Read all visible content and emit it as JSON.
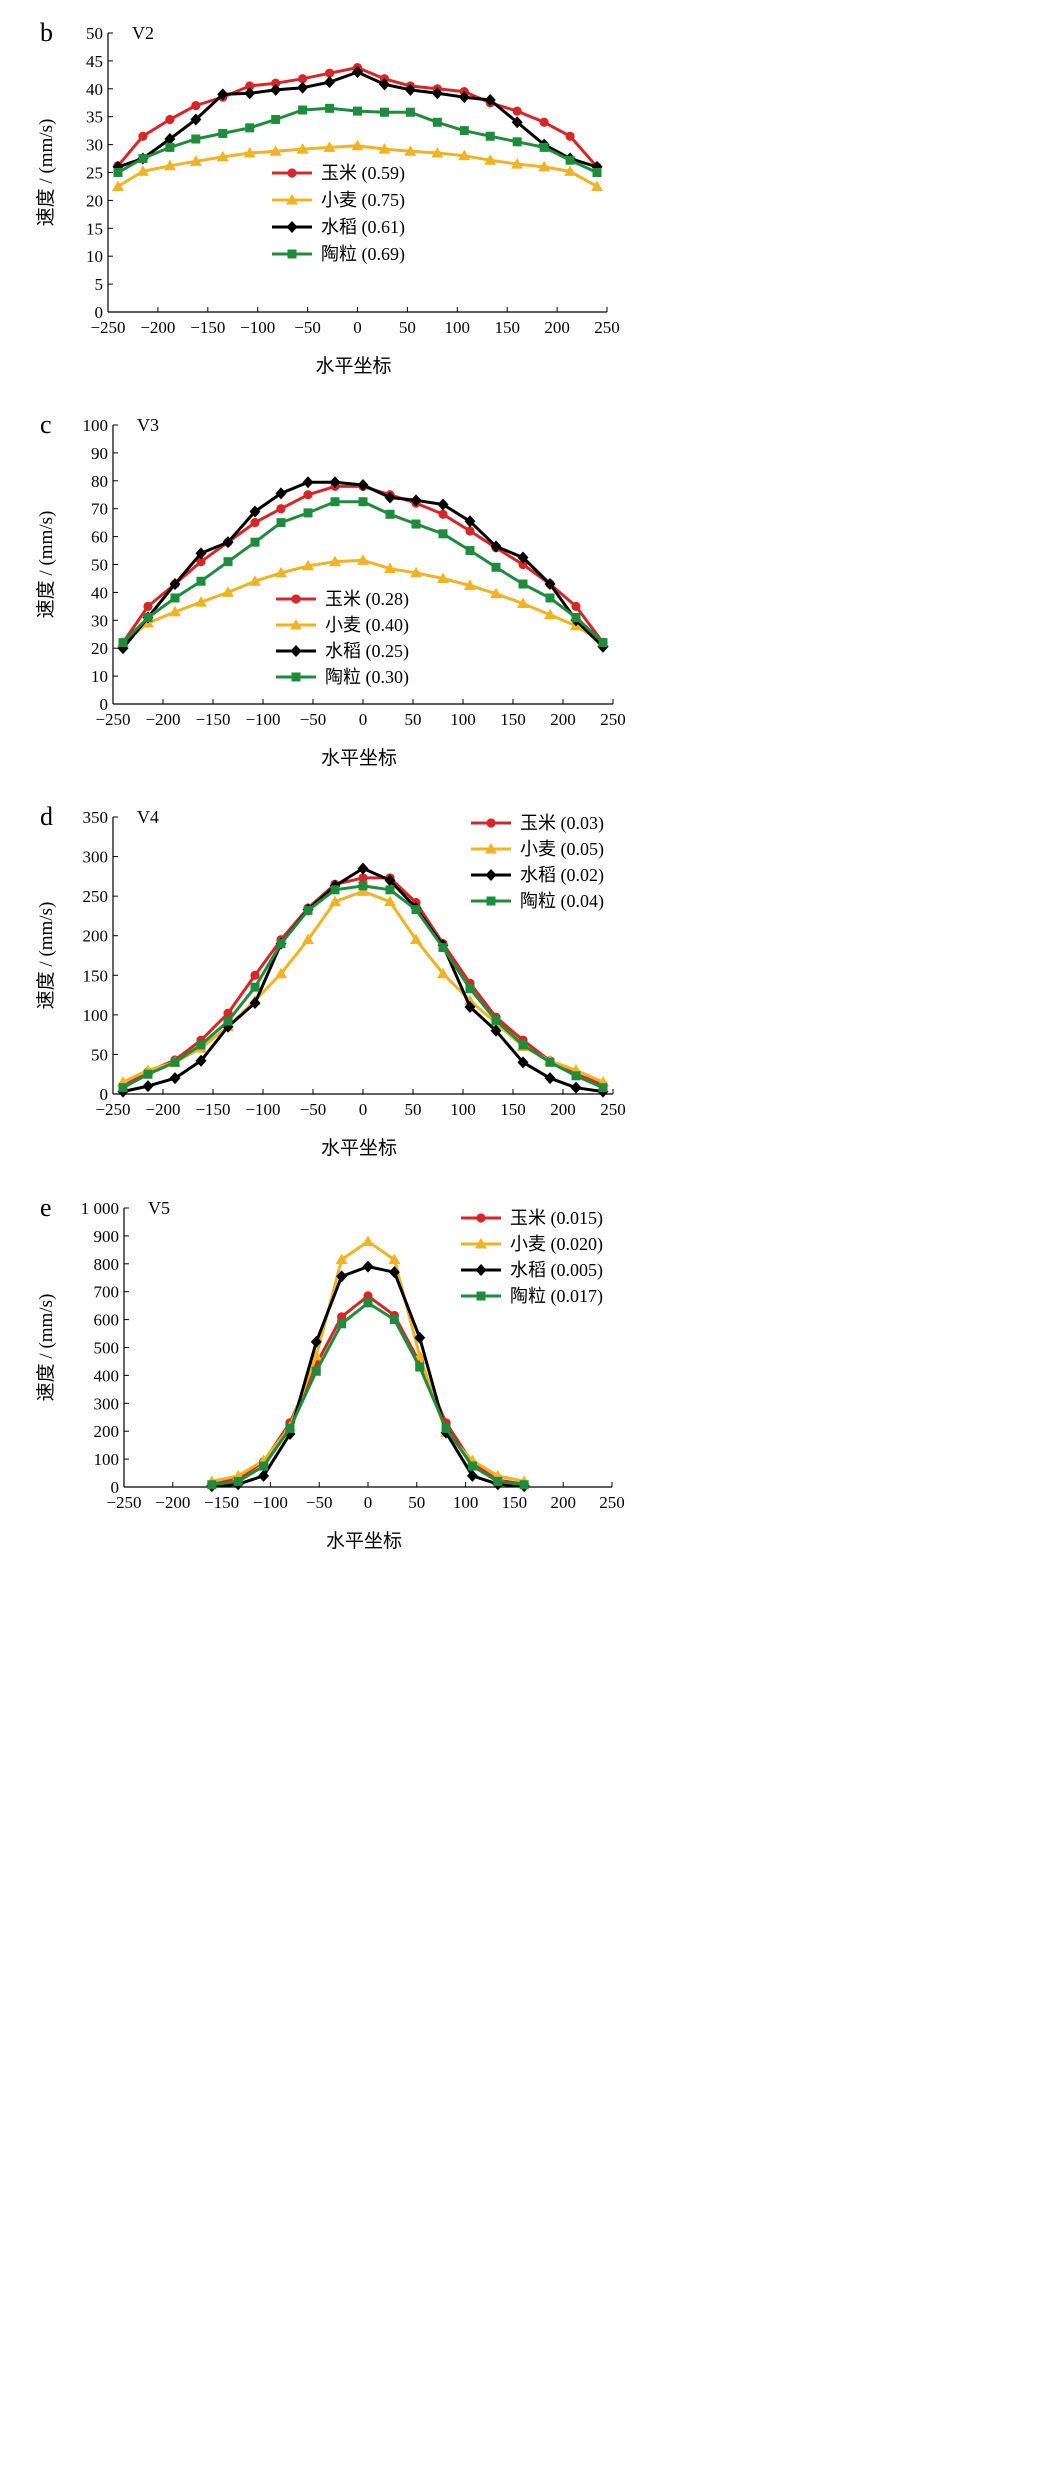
{
  "colors": {
    "series": [
      "#d62728",
      "#f0b323",
      "#000000",
      "#1e8c3c"
    ],
    "axis": "#000000"
  },
  "chart_data": [
    {
      "type": "line",
      "panel_letter": "b",
      "title": "V2",
      "xlabel": "水平坐标",
      "ylabel": "速度 / (mm/s)",
      "xlim": [
        -250,
        250
      ],
      "ylim": [
        0,
        50
      ],
      "xticks": [
        "−250",
        "−200",
        "−150",
        "−100",
        "−50",
        "0",
        "50",
        "100",
        "150",
        "200",
        "250"
      ],
      "yticks": [
        "0",
        "5",
        "10",
        "15",
        "20",
        "25",
        "30",
        "35",
        "40",
        "45",
        "50"
      ],
      "legend_position": "center-bottom",
      "x": [
        -240,
        -215,
        -188,
        -162,
        -135,
        -108,
        -82,
        -55,
        -28,
        0,
        27,
        53,
        80,
        107,
        133,
        160,
        187,
        213,
        240
      ],
      "series": [
        {
          "name": "玉米 (0.59)",
          "marker": "circle",
          "values": [
            26.2,
            31.5,
            34.5,
            37,
            38.5,
            40.5,
            41,
            41.8,
            42.8,
            43.8,
            41.8,
            40.5,
            40,
            39.5,
            37.5,
            36,
            34,
            31.5,
            26
          ]
        },
        {
          "name": "小麦 (0.75)",
          "marker": "triangle",
          "values": [
            22.5,
            25.2,
            26.2,
            27,
            27.8,
            28.5,
            28.8,
            29.2,
            29.5,
            29.8,
            29.2,
            28.8,
            28.5,
            28,
            27.2,
            26.5,
            26,
            25.2,
            22.5
          ]
        },
        {
          "name": "水稻 (0.61)",
          "marker": "diamond",
          "values": [
            26,
            27.5,
            31,
            34.5,
            39,
            39.2,
            39.8,
            40.2,
            41.2,
            43,
            40.8,
            39.8,
            39.2,
            38.5,
            38,
            34,
            30,
            27.5,
            26
          ]
        },
        {
          "name": "陶粒 (0.69)",
          "marker": "square",
          "values": [
            25,
            27.5,
            29.5,
            31,
            32,
            33,
            34.5,
            36.2,
            36.5,
            36,
            35.8,
            35.8,
            34,
            32.5,
            31.5,
            30.5,
            29.5,
            27.2,
            25
          ]
        }
      ]
    },
    {
      "type": "line",
      "panel_letter": "c",
      "title": "V3",
      "xlabel": "水平坐标",
      "ylabel": "速度 / (mm/s)",
      "xlim": [
        -250,
        250
      ],
      "ylim": [
        0,
        100
      ],
      "xticks": [
        "−250",
        "−200",
        "−150",
        "−100",
        "−50",
        "0",
        "50",
        "100",
        "150",
        "200",
        "250"
      ],
      "yticks": [
        "0",
        "10",
        "20",
        "30",
        "40",
        "50",
        "60",
        "70",
        "80",
        "90",
        "100"
      ],
      "legend_position": "center-bottom",
      "x": [
        -240,
        -215,
        -188,
        -162,
        -135,
        -108,
        -82,
        -55,
        -28,
        0,
        27,
        53,
        80,
        107,
        133,
        160,
        187,
        213,
        240
      ],
      "series": [
        {
          "name": "玉米 (0.28)",
          "marker": "circle",
          "values": [
            22,
            35,
            43,
            51,
            58,
            65,
            70,
            75,
            78,
            78,
            75,
            72,
            68,
            62,
            56,
            50,
            43,
            35,
            22
          ]
        },
        {
          "name": "小麦 (0.40)",
          "marker": "triangle",
          "values": [
            22,
            29,
            33,
            36.5,
            40,
            44,
            47,
            49.5,
            51,
            51.5,
            48.5,
            47,
            45,
            42.5,
            39.5,
            36,
            32,
            28,
            22
          ]
        },
        {
          "name": "水稻 (0.25)",
          "marker": "diamond",
          "values": [
            20,
            31,
            43,
            54,
            58,
            69,
            75.5,
            79.5,
            79.5,
            78.5,
            74,
            73,
            71.5,
            65.5,
            56.5,
            52.5,
            43,
            30,
            20.5
          ]
        },
        {
          "name": "陶粒 (0.30)",
          "marker": "square",
          "values": [
            22,
            31,
            38,
            44,
            51,
            58,
            65,
            68.5,
            72.5,
            72.5,
            68,
            64.5,
            61,
            55,
            49,
            43,
            38,
            31,
            22
          ]
        }
      ]
    },
    {
      "type": "line",
      "panel_letter": "d",
      "title": "V4",
      "xlabel": "水平坐标",
      "ylabel": "速度 / (mm/s)",
      "xlim": [
        -250,
        250
      ],
      "ylim": [
        0,
        350
      ],
      "xticks": [
        "−250",
        "−200",
        "−150",
        "−100",
        "−50",
        "0",
        "50",
        "100",
        "150",
        "200",
        "250"
      ],
      "yticks": [
        "0",
        "50",
        "100",
        "150",
        "200",
        "250",
        "300",
        "350"
      ],
      "legend_position": "top-right",
      "x": [
        -240,
        -215,
        -188,
        -162,
        -135,
        -108,
        -82,
        -55,
        -28,
        0,
        27,
        53,
        80,
        107,
        133,
        160,
        187,
        213,
        240
      ],
      "series": [
        {
          "name": "玉米 (0.03)",
          "marker": "circle",
          "values": [
            10,
            28,
            43,
            68,
            102,
            150,
            195,
            235,
            265,
            273,
            273,
            242,
            190,
            140,
            97,
            68,
            42,
            25,
            12
          ]
        },
        {
          "name": "小麦 (0.05)",
          "marker": "triangle",
          "values": [
            15,
            30,
            40,
            58,
            85,
            118,
            152,
            195,
            243,
            256,
            243,
            195,
            152,
            118,
            90,
            60,
            42,
            30,
            15
          ]
        },
        {
          "name": "水稻 (0.02)",
          "marker": "diamond",
          "values": [
            3,
            10,
            20,
            42,
            85,
            115,
            190,
            233,
            263,
            285,
            270,
            235,
            188,
            110,
            80,
            40,
            20,
            8,
            3
          ]
        },
        {
          "name": "陶粒 (0.04)",
          "marker": "square",
          "values": [
            8,
            25,
            40,
            62,
            92,
            135,
            190,
            232,
            258,
            263,
            258,
            233,
            185,
            133,
            93,
            62,
            40,
            23,
            8
          ]
        }
      ]
    },
    {
      "type": "line",
      "panel_letter": "e",
      "title": "V5",
      "xlabel": "水平坐标",
      "ylabel": "速度 / (mm/s)",
      "xlim": [
        -250,
        250
      ],
      "ylim": [
        0,
        1000
      ],
      "xticks": [
        "−250",
        "−200",
        "−150",
        "−100",
        "−50",
        "0",
        "50",
        "100",
        "150",
        "200",
        "250"
      ],
      "yticks": [
        "0",
        "100",
        "200",
        "300",
        "400",
        "500",
        "600",
        "700",
        "800",
        "900",
        "1 000"
      ],
      "legend_position": "top-right",
      "x": [
        -160,
        -133,
        -107,
        -80,
        -53,
        -27,
        0,
        27,
        53,
        80,
        107,
        133,
        160
      ],
      "series": [
        {
          "name": "玉米 (0.015)",
          "marker": "circle",
          "values": [
            10,
            30,
            90,
            230,
            440,
            610,
            685,
            615,
            445,
            230,
            85,
            25,
            10
          ]
        },
        {
          "name": "小麦 (0.020)",
          "marker": "triangle",
          "values": [
            20,
            40,
            95,
            215,
            470,
            815,
            880,
            815,
            470,
            195,
            95,
            40,
            20
          ]
        },
        {
          "name": "水稻 (0.005)",
          "marker": "diamond",
          "values": [
            3,
            10,
            40,
            190,
            520,
            755,
            790,
            770,
            535,
            195,
            40,
            10,
            3
          ]
        },
        {
          "name": "陶粒 (0.017)",
          "marker": "square",
          "values": [
            8,
            20,
            75,
            210,
            415,
            585,
            660,
            600,
            430,
            210,
            75,
            20,
            8
          ]
        }
      ]
    }
  ]
}
